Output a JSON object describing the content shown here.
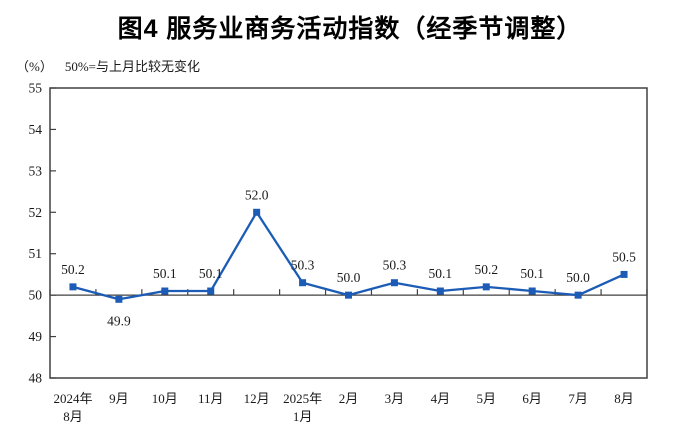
{
  "chart_data": {
    "type": "line",
    "title": "图4 服务业商务活动指数（经季节调整）",
    "subtitle_unit": "（%）",
    "subtitle_note": "50%=与上月比较无变化",
    "categories": [
      {
        "line1": "2024年",
        "line2": "8月"
      },
      {
        "line1": "9月"
      },
      {
        "line1": "10月"
      },
      {
        "line1": "11月"
      },
      {
        "line1": "12月"
      },
      {
        "line1": "2025年",
        "line2": "1月"
      },
      {
        "line1": "2月"
      },
      {
        "line1": "3月"
      },
      {
        "line1": "4月"
      },
      {
        "line1": "5月"
      },
      {
        "line1": "6月"
      },
      {
        "line1": "7月"
      },
      {
        "line1": "8月"
      }
    ],
    "series": [
      {
        "name": "服务业商务活动指数",
        "values": [
          50.2,
          49.9,
          50.1,
          50.1,
          52.0,
          50.3,
          50.0,
          50.3,
          50.1,
          50.2,
          50.1,
          50.0,
          50.5
        ]
      }
    ],
    "data_labels": [
      "50.2",
      "49.9",
      "50.1",
      "50.1",
      "52.0",
      "50.3",
      "50.0",
      "50.3",
      "50.1",
      "50.2",
      "50.1",
      "50.0",
      "50.5"
    ],
    "label_placement": [
      "above",
      "below",
      "above",
      "above",
      "above",
      "above",
      "above",
      "above",
      "above",
      "above",
      "above",
      "above",
      "above"
    ],
    "ylim": [
      48,
      55
    ],
    "yticks": [
      "48",
      "49",
      "50",
      "51",
      "52",
      "53",
      "54",
      "55"
    ],
    "category_axis_crosses_at": 50,
    "grid": false,
    "legend": "none",
    "colors": {
      "line": "#1C5CB7",
      "marker": "#1C5CB7",
      "axis": "#404040",
      "text": "#1a1a1a"
    }
  }
}
